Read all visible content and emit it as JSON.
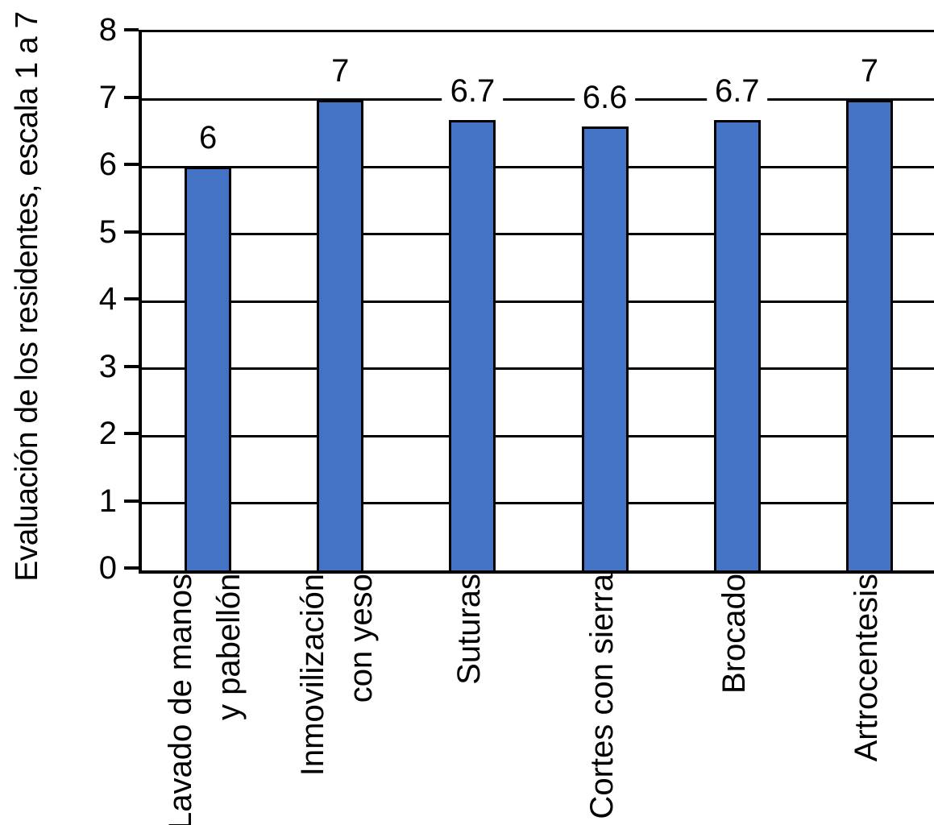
{
  "chart_data": {
    "type": "bar",
    "title": "",
    "xlabel": "",
    "ylabel": "Evaluación de los residentes, escala 1 a 7",
    "categories": [
      "Lavado de manos\ny pabellón",
      "Inmovilización\ncon yeso",
      "Suturas",
      "Cortes con sierra",
      "Brocado",
      "Artrocentesis"
    ],
    "values": [
      6,
      7,
      6.7,
      6.6,
      6.7,
      7
    ],
    "value_labels": [
      "6",
      "7",
      "6.7",
      "6.6",
      "6.7",
      "7"
    ],
    "ylim": [
      0,
      8
    ],
    "yticks": [
      0,
      1,
      2,
      3,
      4,
      5,
      6,
      7,
      8
    ],
    "grid": true,
    "legend_position": "none",
    "bar_color": "#4472c4",
    "bar_border_color": "#000000",
    "axis_color": "#000000",
    "gridline_color": "#000000"
  }
}
